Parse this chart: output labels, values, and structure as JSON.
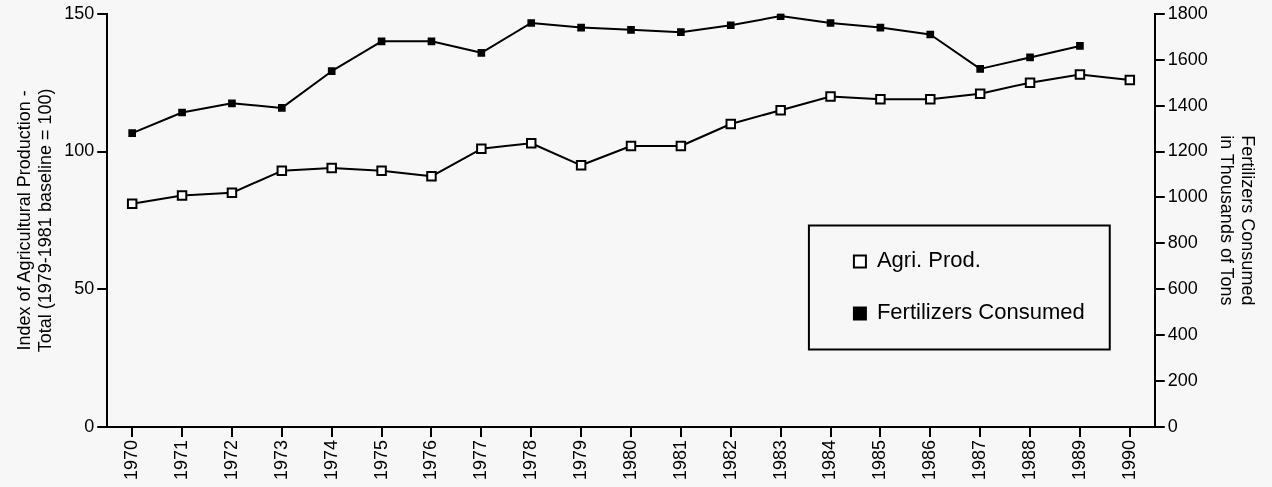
{
  "chart_data": {
    "type": "line",
    "categories": [
      "1970",
      "1971",
      "1972",
      "1973",
      "1974",
      "1975",
      "1976",
      "1977",
      "1978",
      "1979",
      "1980",
      "1981",
      "1982",
      "1983",
      "1984",
      "1985",
      "1986",
      "1987",
      "1988",
      "1989",
      "1990"
    ],
    "ylabel": "Index of Agricultural Production - Total (1979-1981 baseline = 100)",
    "y2label": "Fertilizers Consumed in Thousands of Tons",
    "ylim": [
      0,
      150
    ],
    "yticks": [
      0,
      50,
      100,
      150
    ],
    "y2lim": [
      0,
      1800
    ],
    "y2ticks": [
      0,
      200,
      400,
      600,
      800,
      1000,
      1200,
      1400,
      1600,
      1800
    ],
    "grid": false,
    "legend": "right",
    "marker": "square",
    "line_style": "solid",
    "series": [
      {
        "name": "Agri. Prod.",
        "color": "#000000",
        "values": [
          81,
          84,
          85,
          93,
          94,
          93,
          91,
          101,
          103,
          95,
          102,
          102,
          110,
          115,
          120,
          119,
          119,
          121,
          125,
          128,
          126
        ]
      },
      {
        "name": "Fertilizers Consumed",
        "color": "#000000",
        "axis": "y2",
        "values": [
          1280,
          1370,
          1410,
          1390,
          1550,
          1680,
          1680,
          1630,
          1760,
          1740,
          1730,
          1720,
          1750,
          1790,
          1760,
          1740,
          1710,
          1560,
          1610,
          1660,
          null
        ]
      }
    ]
  }
}
